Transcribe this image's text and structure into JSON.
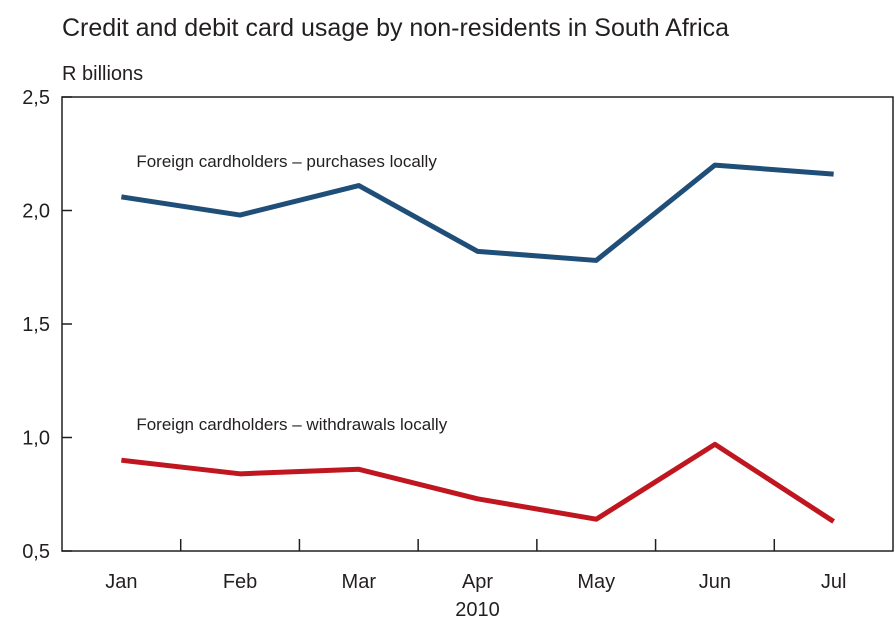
{
  "chart_data": {
    "type": "line",
    "title": "Credit and debit card usage by non-residents in South Africa",
    "y_unit_label": "R billions",
    "x_axis_caption": "2010",
    "categories": [
      "Jan",
      "Feb",
      "Mar",
      "Apr",
      "May",
      "Jun",
      "Jul"
    ],
    "ylim": [
      0.5,
      2.5
    ],
    "y_ticks": [
      0.5,
      1.0,
      1.5,
      2.0,
      2.5
    ],
    "y_tick_labels": [
      "0,5",
      "1,0",
      "1,5",
      "2,0",
      "2,5"
    ],
    "grid": false,
    "legend": "inline labels above each series",
    "series": [
      {
        "name": "Foreign cardholders – purchases locally",
        "color": "#1f4e79",
        "values": [
          2.06,
          1.98,
          2.11,
          1.82,
          1.78,
          2.2,
          2.16
        ]
      },
      {
        "name": "Foreign cardholders – withdrawals locally",
        "color": "#c0161f",
        "values": [
          0.9,
          0.84,
          0.86,
          0.73,
          0.64,
          0.97,
          0.63
        ]
      }
    ]
  }
}
